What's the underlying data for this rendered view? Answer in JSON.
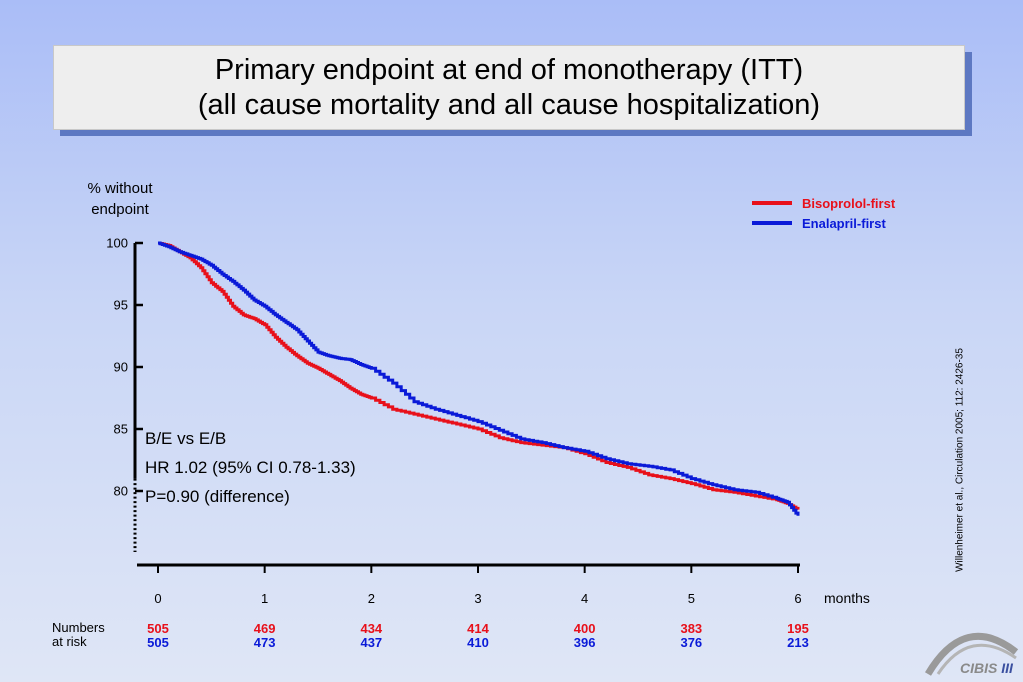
{
  "title": {
    "line1": "Primary endpoint at end of monotherapy (ITT)",
    "line2": "(all cause mortality and all cause hospitalization)"
  },
  "chart_data": {
    "type": "line",
    "title": "Primary endpoint at end of monotherapy (ITT)",
    "ylabel": "% without endpoint",
    "xlabel": "months",
    "xlim": [
      0,
      6
    ],
    "ylim": [
      75,
      100
    ],
    "x_ticks": [
      "0",
      "1",
      "2",
      "3",
      "4",
      "5",
      "6"
    ],
    "y_ticks": [
      "100",
      "95",
      "90",
      "85",
      "80"
    ],
    "legend_position": "top-right",
    "series": [
      {
        "name": "Bisoprolol-first",
        "color": "#e8101a",
        "x": [
          0,
          0.1,
          0.2,
          0.3,
          0.4,
          0.5,
          0.6,
          0.7,
          0.8,
          0.9,
          1.0,
          1.1,
          1.2,
          1.3,
          1.4,
          1.5,
          1.6,
          1.7,
          1.8,
          1.9,
          2.0,
          2.2,
          2.4,
          2.6,
          2.8,
          3.0,
          3.2,
          3.4,
          3.6,
          3.8,
          4.0,
          4.2,
          4.4,
          4.6,
          4.8,
          5.0,
          5.2,
          5.4,
          5.6,
          5.8,
          5.9,
          6.0
        ],
        "y": [
          100,
          99.8,
          99.3,
          98.8,
          98.0,
          96.8,
          96.1,
          94.9,
          94.2,
          93.9,
          93.4,
          92.4,
          91.6,
          90.9,
          90.3,
          89.9,
          89.4,
          88.9,
          88.3,
          87.8,
          87.5,
          86.6,
          86.2,
          85.8,
          85.4,
          85.0,
          84.3,
          83.9,
          83.7,
          83.5,
          83.0,
          82.3,
          81.9,
          81.3,
          81.0,
          80.6,
          80.1,
          79.9,
          79.6,
          79.3,
          79.0,
          78.5
        ]
      },
      {
        "name": "Enalapril-first",
        "color": "#0a1ad8",
        "x": [
          0,
          0.1,
          0.2,
          0.3,
          0.4,
          0.5,
          0.6,
          0.7,
          0.8,
          0.9,
          1.0,
          1.1,
          1.2,
          1.3,
          1.4,
          1.5,
          1.6,
          1.7,
          1.8,
          1.9,
          2.0,
          2.2,
          2.4,
          2.6,
          2.8,
          3.0,
          3.2,
          3.4,
          3.6,
          3.8,
          4.0,
          4.2,
          4.4,
          4.6,
          4.8,
          5.0,
          5.2,
          5.4,
          5.6,
          5.8,
          5.9,
          6.0
        ],
        "y": [
          100,
          99.7,
          99.3,
          99.0,
          98.7,
          98.2,
          97.5,
          96.9,
          96.2,
          95.4,
          94.9,
          94.2,
          93.6,
          93.0,
          92.1,
          91.2,
          90.9,
          90.7,
          90.6,
          90.2,
          89.9,
          88.7,
          87.2,
          86.6,
          86.1,
          85.6,
          84.9,
          84.2,
          83.9,
          83.5,
          83.2,
          82.6,
          82.2,
          82.0,
          81.7,
          81.0,
          80.5,
          80.1,
          79.9,
          79.4,
          79.1,
          78.0
        ]
      }
    ]
  },
  "stats": {
    "comparison": "B/E vs E/B",
    "hr": "HR 1.02 (95% CI 0.78-1.33)",
    "p": "P=0.90 (difference)"
  },
  "ylabel_line1": "% without",
  "ylabel_line2": "endpoint",
  "months_label": "months",
  "citation": "Willenheimer et al., Circulation 2005; 112: 2426-35",
  "numbers_at_risk": {
    "label_line1": "Numbers",
    "label_line2": "at risk",
    "bisoprolol": [
      "505",
      "469",
      "434",
      "414",
      "400",
      "383",
      "195"
    ],
    "enalapril": [
      "505",
      "473",
      "437",
      "410",
      "396",
      "376",
      "213"
    ]
  },
  "logo": {
    "text_main": "CIBIS",
    "text_suffix": " III"
  }
}
